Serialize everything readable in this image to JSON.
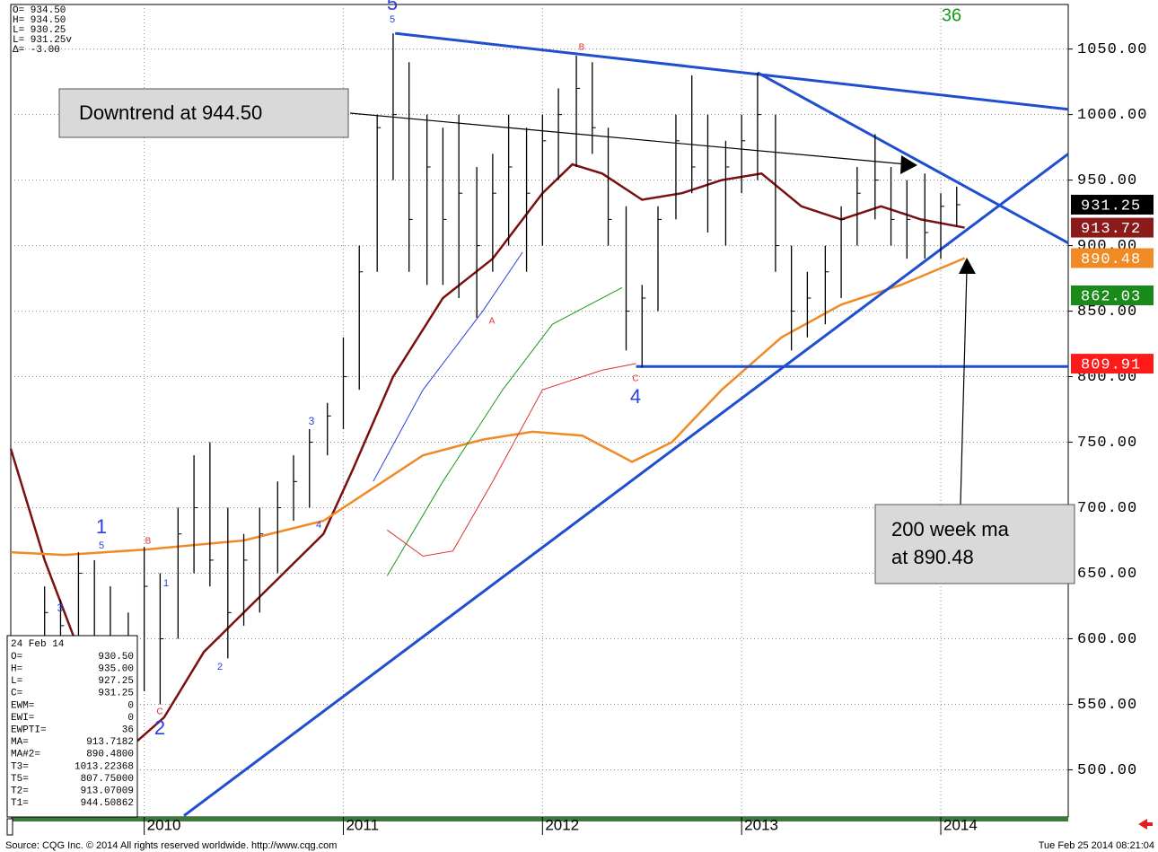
{
  "chart_data": {
    "type": "ohlc",
    "xlim": [
      2009.33,
      2014.64
    ],
    "ylim": [
      464,
      1084
    ],
    "xticks": [
      2010,
      2011,
      2012,
      2013,
      2014
    ],
    "yticks": [
      {
        "value": 500,
        "label": "500.00"
      },
      {
        "value": 550,
        "label": "550.00"
      },
      {
        "value": 600,
        "label": "600.00"
      },
      {
        "value": 650,
        "label": "650.00"
      },
      {
        "value": 700,
        "label": "700.00"
      },
      {
        "value": 750,
        "label": "750.00"
      },
      {
        "value": 800,
        "label": "800.00"
      },
      {
        "value": 850,
        "label": "850.00"
      },
      {
        "value": 900,
        "label": "900.00"
      },
      {
        "value": 950,
        "label": "950.00"
      },
      {
        "value": 1000,
        "label": "1000.00"
      },
      {
        "value": 1050,
        "label": "1050.00"
      }
    ],
    "grid": true,
    "bar_color": "#000000",
    "x": [
      2009.5,
      2009.58,
      2009.67,
      2009.75,
      2009.83,
      2009.92,
      2010.0,
      2010.08,
      2010.17,
      2010.25,
      2010.33,
      2010.42,
      2010.5,
      2010.58,
      2010.67,
      2010.75,
      2010.83,
      2010.92,
      2011.0,
      2011.08,
      2011.17,
      2011.25,
      2011.33,
      2011.42,
      2011.5,
      2011.58,
      2011.67,
      2011.75,
      2011.83,
      2011.92,
      2012.0,
      2012.08,
      2012.17,
      2012.25,
      2012.33,
      2012.42,
      2012.5,
      2012.58,
      2012.67,
      2012.75,
      2012.83,
      2012.92,
      2013.0,
      2013.08,
      2013.17,
      2013.25,
      2013.33,
      2013.42,
      2013.5,
      2013.58,
      2013.67,
      2013.75,
      2013.83,
      2013.92,
      2014.0,
      2014.08
    ],
    "high": [
      640,
      630,
      666,
      660,
      640,
      620,
      670,
      650,
      700,
      740,
      750,
      700,
      680,
      700,
      720,
      740,
      760,
      780,
      830,
      900,
      1000,
      1062,
      1040,
      1000,
      990,
      1000,
      960,
      970,
      1000,
      990,
      1000,
      1020,
      1045,
      1040,
      990,
      930,
      870,
      930,
      1000,
      1030,
      1000,
      980,
      1000,
      1032,
      1000,
      900,
      880,
      900,
      930,
      960,
      985,
      960,
      950,
      955,
      940,
      945
    ],
    "low": [
      600,
      590,
      600,
      580,
      560,
      555,
      560,
      550,
      600,
      650,
      640,
      585,
      610,
      620,
      650,
      690,
      700,
      740,
      760,
      790,
      880,
      950,
      880,
      870,
      870,
      860,
      845,
      880,
      900,
      880,
      900,
      950,
      960,
      970,
      900,
      820,
      807,
      850,
      920,
      940,
      910,
      900,
      940,
      950,
      880,
      820,
      830,
      840,
      860,
      900,
      920,
      900,
      890,
      890,
      890,
      915
    ],
    "close": [
      620,
      610,
      650,
      600,
      580,
      600,
      640,
      600,
      680,
      700,
      660,
      620,
      660,
      680,
      700,
      720,
      750,
      770,
      800,
      880,
      990,
      1000,
      920,
      960,
      920,
      940,
      900,
      940,
      960,
      940,
      980,
      1000,
      1020,
      990,
      920,
      850,
      860,
      920,
      980,
      960,
      950,
      960,
      980,
      1000,
      900,
      850,
      860,
      880,
      920,
      940,
      950,
      920,
      920,
      910,
      930,
      931.25
    ],
    "lines": [
      {
        "color": "#7a1010",
        "x": [
          2009.33,
          2009.5,
          2009.75,
          2009.95,
          2010.1,
          2010.3,
          2010.5,
          2010.7,
          2010.9,
          2011.05,
          2011.25,
          2011.5,
          2011.75,
          2012.0,
          2012.15,
          2012.3,
          2012.5,
          2012.7,
          2012.9,
          2013.1,
          2013.3,
          2013.5,
          2013.7,
          2013.9,
          2014.12
        ],
        "y": [
          745,
          660,
          560,
          520,
          540,
          590,
          620,
          650,
          680,
          730,
          800,
          860,
          890,
          940,
          962,
          955,
          935,
          940,
          950,
          955,
          930,
          920,
          930,
          920,
          913.72
        ]
      },
      {
        "color": "#f08a24",
        "x": [
          2009.33,
          2009.6,
          2010.0,
          2010.5,
          2010.9,
          2011.1,
          2011.4,
          2011.7,
          2011.95,
          2012.2,
          2012.45,
          2012.65,
          2012.9,
          2013.2,
          2013.5,
          2013.8,
          2014.12
        ],
        "y": [
          666,
          664,
          668,
          675,
          690,
          710,
          740,
          752,
          758,
          755,
          735,
          750,
          790,
          830,
          855,
          870,
          890.48
        ]
      },
      {
        "color": "#2b3fe0",
        "x": [
          2011.15,
          2011.4,
          2011.7,
          2011.9
        ],
        "y": [
          720,
          790,
          850,
          895
        ]
      },
      {
        "color": "#1a9a1a",
        "x": [
          2011.22,
          2011.5,
          2011.8,
          2012.05,
          2012.4
        ],
        "y": [
          648,
          720,
          790,
          840,
          868
        ]
      },
      {
        "color": "#e03030",
        "x": [
          2011.22,
          2011.4,
          2011.55,
          2011.75,
          2012.0,
          2012.3,
          2012.47
        ],
        "y": [
          683,
          663,
          667,
          720,
          790,
          805,
          810
        ]
      }
    ],
    "trendlines": [
      {
        "color": "#1f4fd0",
        "x": [
          2011.26,
          2014.64
        ],
        "y": [
          1062,
          1004
        ]
      },
      {
        "color": "#1f4fd0",
        "x": [
          2013.08,
          2014.64
        ],
        "y": [
          1032,
          902
        ]
      },
      {
        "color": "#1f4fd0",
        "x": [
          2010.2,
          2014.64
        ],
        "y": [
          465,
          970
        ]
      },
      {
        "color": "#1f4fd0",
        "x": [
          2012.47,
          2014.64
        ],
        "y": [
          807.75,
          807.75
        ]
      }
    ],
    "price_tags": [
      {
        "value": 931.25,
        "color": "#000000"
      },
      {
        "value": 913.72,
        "color": "#8b1a1a"
      },
      {
        "value": 890.48,
        "color": "#f08a24"
      },
      {
        "value": 862.03,
        "color": "#1a8a1a"
      },
      {
        "value": 809.91,
        "color": "#ff1a1a"
      }
    ],
    "annotations": [
      "Downtrend at 944.50",
      "200 week ma",
      "at 890.48"
    ],
    "wave_labels": [
      "5",
      "5",
      "1",
      "5",
      "B",
      "3",
      "1",
      "2",
      "C",
      "2",
      "3",
      "4",
      "A",
      "B",
      "C",
      "4",
      "36"
    ],
    "data_window": [
      "O=  934.50",
      "H=  934.50",
      "L=  930.25",
      "L=  931.25v",
      "Δ=   -3.00"
    ],
    "info_box": {
      "date": "24 Feb 14",
      "rows": [
        [
          "O=",
          "930.50"
        ],
        [
          "H=",
          "935.00"
        ],
        [
          "L=",
          "927.25"
        ],
        [
          "C=",
          "931.25"
        ],
        [
          "EWM=",
          "0"
        ],
        [
          "EWI=",
          "0"
        ],
        [
          "EWPTI=",
          "36"
        ],
        [
          "MA=",
          "913.7182"
        ],
        [
          "MA#2=",
          "890.4800"
        ],
        [
          "T3=",
          "1013.22368"
        ],
        [
          "T5=",
          "807.75000"
        ],
        [
          "T2=",
          "913.07009"
        ],
        [
          "T1=",
          "944.50862"
        ]
      ]
    },
    "footer_left": "Source: CQG Inc. © 2014 All rights reserved worldwide. http://www.cqg.com",
    "footer_right": "Tue Feb 25 2014 08:21:04"
  }
}
